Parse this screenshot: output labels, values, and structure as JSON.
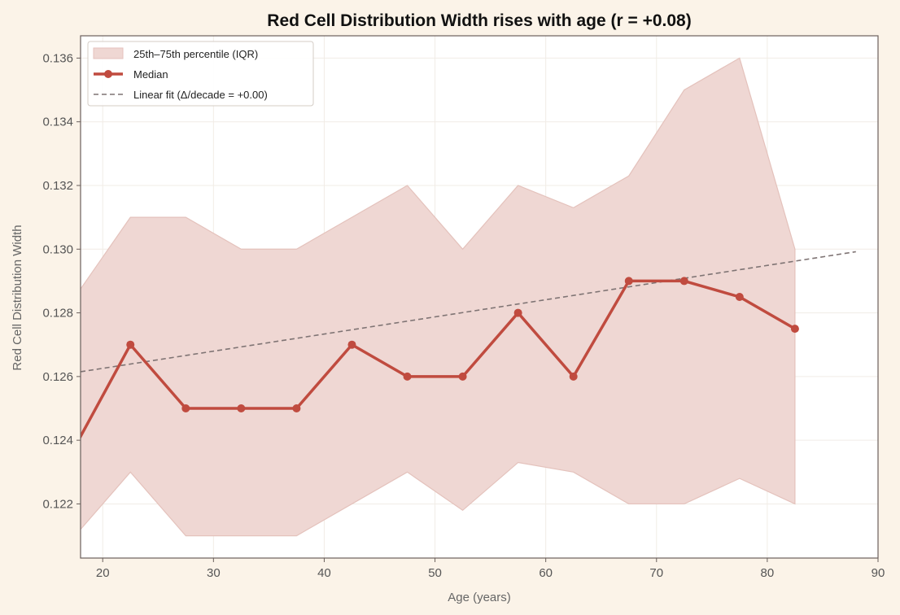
{
  "chart_data": {
    "type": "line",
    "title": "Red Cell Distribution Width rises with age (r = +0.08)",
    "xlabel": "Age (years)",
    "ylabel": "Red Cell Distribution Width",
    "xlim": [
      18,
      90
    ],
    "ylim": [
      0.1203,
      0.1367
    ],
    "xticks": [
      20,
      30,
      40,
      50,
      60,
      70,
      80,
      90
    ],
    "yticks": [
      0.122,
      0.124,
      0.126,
      0.128,
      0.13,
      0.132,
      0.134,
      0.136
    ],
    "grid": true,
    "legend_position": "top-left",
    "iqr": {
      "name": "25th–75th percentile (IQR)",
      "x": [
        17.5,
        22.5,
        27.5,
        32.5,
        37.5,
        42.5,
        47.5,
        52.5,
        57.5,
        62.5,
        67.5,
        72.5,
        77.5,
        82.5
      ],
      "lower": [
        0.121,
        0.123,
        0.121,
        0.121,
        0.121,
        0.122,
        0.123,
        0.1218,
        0.1233,
        0.123,
        0.122,
        0.122,
        0.1228,
        0.122
      ],
      "upper": [
        0.1285,
        0.131,
        0.131,
        0.13,
        0.13,
        0.131,
        0.132,
        0.13,
        0.132,
        0.1313,
        0.1323,
        0.135,
        0.136,
        0.13
      ]
    },
    "median": {
      "name": "Median",
      "x": [
        17.5,
        22.5,
        27.5,
        32.5,
        37.5,
        42.5,
        47.5,
        52.5,
        57.5,
        62.5,
        67.5,
        72.5,
        77.5,
        82.5
      ],
      "y": [
        0.1238,
        0.127,
        0.125,
        0.125,
        0.125,
        0.127,
        0.126,
        0.126,
        0.128,
        0.126,
        0.129,
        0.129,
        0.1285,
        0.1275
      ]
    },
    "fit": {
      "name": "Linear fit (Δ/decade = +0.00)",
      "x": [
        18,
        88
      ],
      "y": [
        0.12615,
        0.12992
      ]
    },
    "colors": {
      "background": "#fbf3e8",
      "plot_background": "#ffffff",
      "iqr_fill": "#efd7d3",
      "iqr_edge": "#e4c2bc",
      "median": "#c04b3f",
      "fit": "#7f7474",
      "axes": "#6a5f5c",
      "grid": "#f1ece6"
    }
  }
}
